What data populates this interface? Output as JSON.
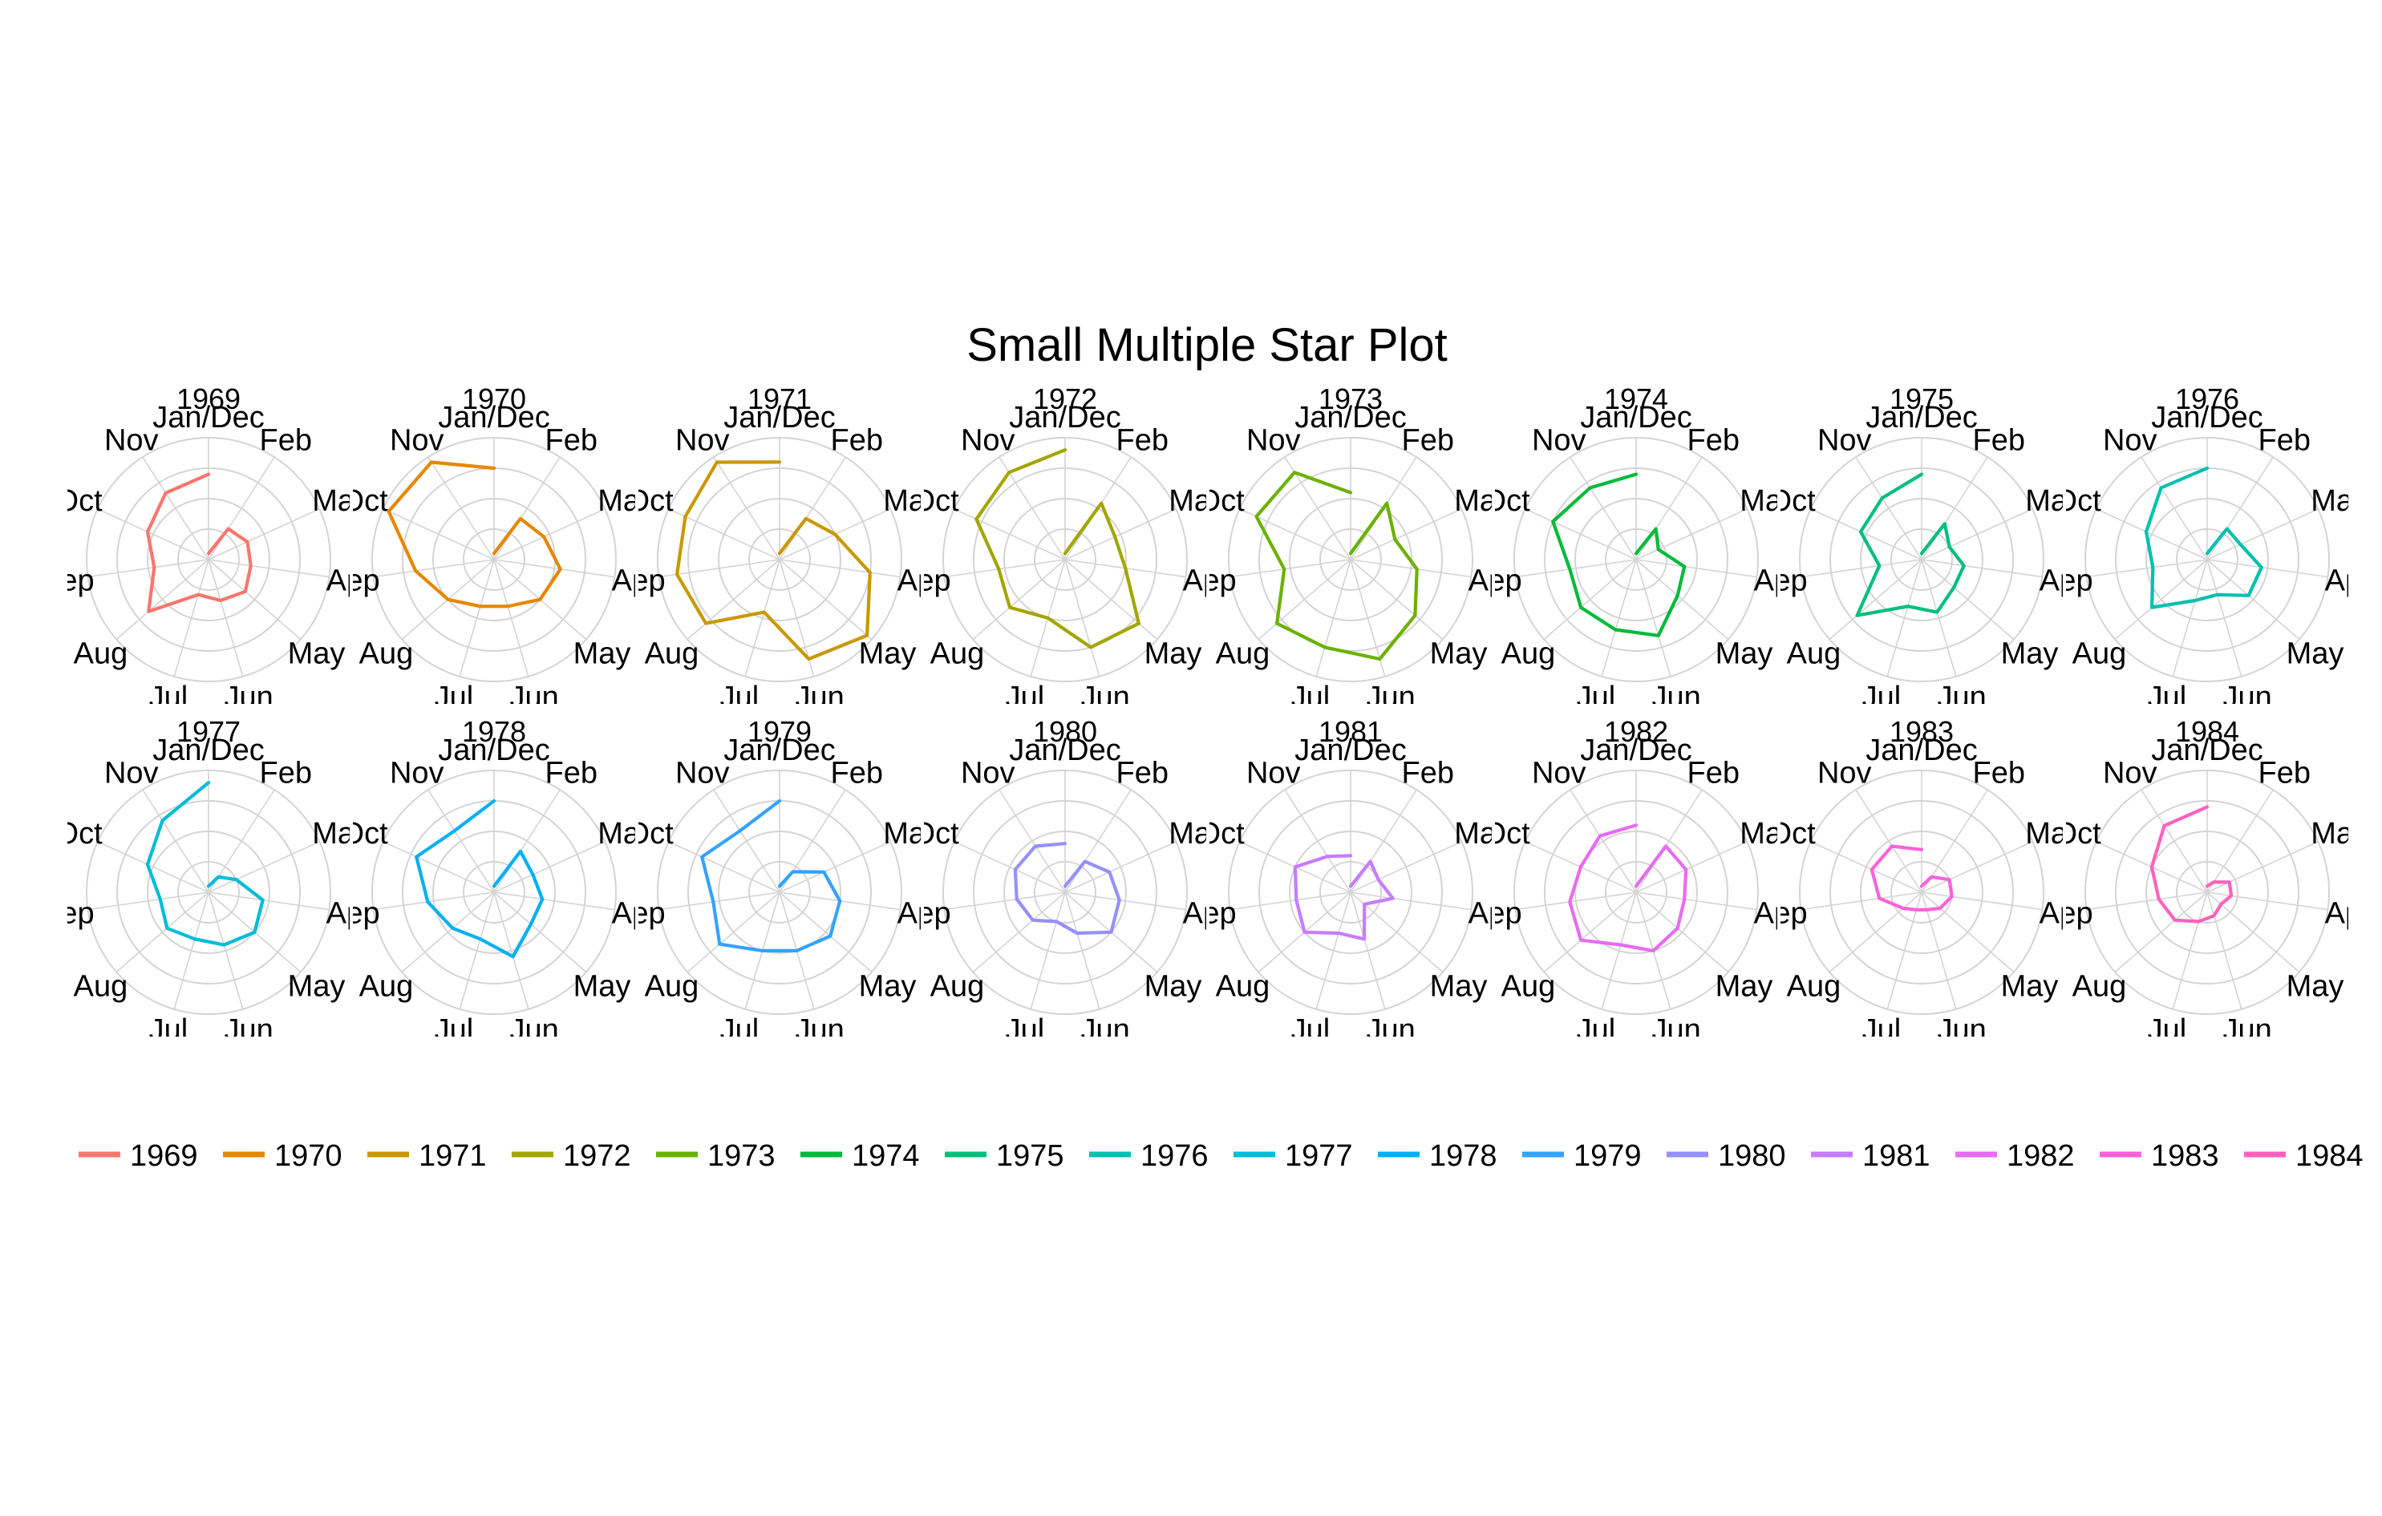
{
  "chart_data": {
    "type": "line",
    "coordinate_system": "polar",
    "title": "Small Multiple Star Plot",
    "theta_labels": [
      "Jan/Dec",
      "Feb",
      "Mar",
      "Apr",
      "May",
      "Jun",
      "Jul",
      "Aug",
      "Sep",
      "Oct",
      "Nov"
    ],
    "months": [
      "Jan",
      "Feb",
      "Mar",
      "Apr",
      "May",
      "Jun",
      "Jul",
      "Aug",
      "Sep",
      "Oct",
      "Nov",
      "Dec"
    ],
    "r_range": [
      0,
      1
    ],
    "grid": true,
    "legend_position": "bottom",
    "series": [
      {
        "name": "1969",
        "color": "#F8766D",
        "values": [
          0.05,
          0.3,
          0.35,
          0.35,
          0.4,
          0.35,
          0.3,
          0.65,
          0.45,
          0.55,
          0.65,
          0.7
        ]
      },
      {
        "name": "1970",
        "color": "#E58700",
        "values": [
          0.05,
          0.4,
          0.45,
          0.55,
          0.5,
          0.4,
          0.4,
          0.5,
          0.65,
          0.95,
          0.95,
          0.75
        ]
      },
      {
        "name": "1971",
        "color": "#C99800",
        "values": [
          0.05,
          0.4,
          0.5,
          0.75,
          0.95,
          0.85,
          0.45,
          0.8,
          0.85,
          0.85,
          0.95,
          0.8
        ]
      },
      {
        "name": "1972",
        "color": "#A3A500",
        "values": [
          0.05,
          0.55,
          0.45,
          0.5,
          0.8,
          0.75,
          0.5,
          0.6,
          0.55,
          0.8,
          0.85,
          0.9
        ]
      },
      {
        "name": "1973",
        "color": "#6BB100",
        "values": [
          0.05,
          0.55,
          0.4,
          0.55,
          0.7,
          0.85,
          0.75,
          0.8,
          0.55,
          0.85,
          0.85,
          0.55
        ]
      },
      {
        "name": "1974",
        "color": "#00BA38",
        "values": [
          0.05,
          0.3,
          0.2,
          0.4,
          0.45,
          0.65,
          0.6,
          0.6,
          0.55,
          0.75,
          0.7,
          0.7
        ]
      },
      {
        "name": "1975",
        "color": "#00BF7D",
        "values": [
          0.05,
          0.35,
          0.25,
          0.35,
          0.35,
          0.45,
          0.4,
          0.7,
          0.35,
          0.55,
          0.6,
          0.7
        ]
      },
      {
        "name": "1976",
        "color": "#00C0AF",
        "values": [
          0.05,
          0.3,
          0.3,
          0.45,
          0.45,
          0.3,
          0.35,
          0.6,
          0.45,
          0.55,
          0.7,
          0.75
        ]
      },
      {
        "name": "1977",
        "color": "#00BCD8",
        "values": [
          0.05,
          0.15,
          0.25,
          0.45,
          0.5,
          0.45,
          0.4,
          0.45,
          0.4,
          0.55,
          0.7,
          0.9
        ]
      },
      {
        "name": "1978",
        "color": "#00B0F6",
        "values": [
          0.05,
          0.4,
          0.35,
          0.4,
          0.4,
          0.55,
          0.4,
          0.45,
          0.55,
          0.7,
          0.6,
          0.75
        ]
      },
      {
        "name": "1979",
        "color": "#35A2FF",
        "values": [
          0.05,
          0.2,
          0.4,
          0.5,
          0.55,
          0.5,
          0.5,
          0.65,
          0.55,
          0.7,
          0.6,
          0.75
        ]
      },
      {
        "name": "1980",
        "color": "#9590FF",
        "values": [
          0.05,
          0.3,
          0.4,
          0.45,
          0.5,
          0.35,
          0.25,
          0.35,
          0.4,
          0.45,
          0.45,
          0.4
        ]
      },
      {
        "name": "1981",
        "color": "#C77CFF",
        "values": [
          0.05,
          0.3,
          0.25,
          0.35,
          0.15,
          0.4,
          0.35,
          0.5,
          0.45,
          0.5,
          0.35,
          0.3
        ]
      },
      {
        "name": "1982",
        "color": "#E76BF3",
        "values": [
          0.05,
          0.45,
          0.45,
          0.4,
          0.45,
          0.5,
          0.45,
          0.6,
          0.55,
          0.5,
          0.55,
          0.55
        ]
      },
      {
        "name": "1983",
        "color": "#FA62DB",
        "values": [
          0.05,
          0.15,
          0.25,
          0.25,
          0.2,
          0.15,
          0.15,
          0.2,
          0.35,
          0.45,
          0.45,
          0.35
        ]
      },
      {
        "name": "1984",
        "color": "#FF62BC",
        "values": [
          0.05,
          0.1,
          0.2,
          0.2,
          0.15,
          0.2,
          0.25,
          0.35,
          0.4,
          0.5,
          0.65,
          0.7
        ]
      }
    ]
  }
}
